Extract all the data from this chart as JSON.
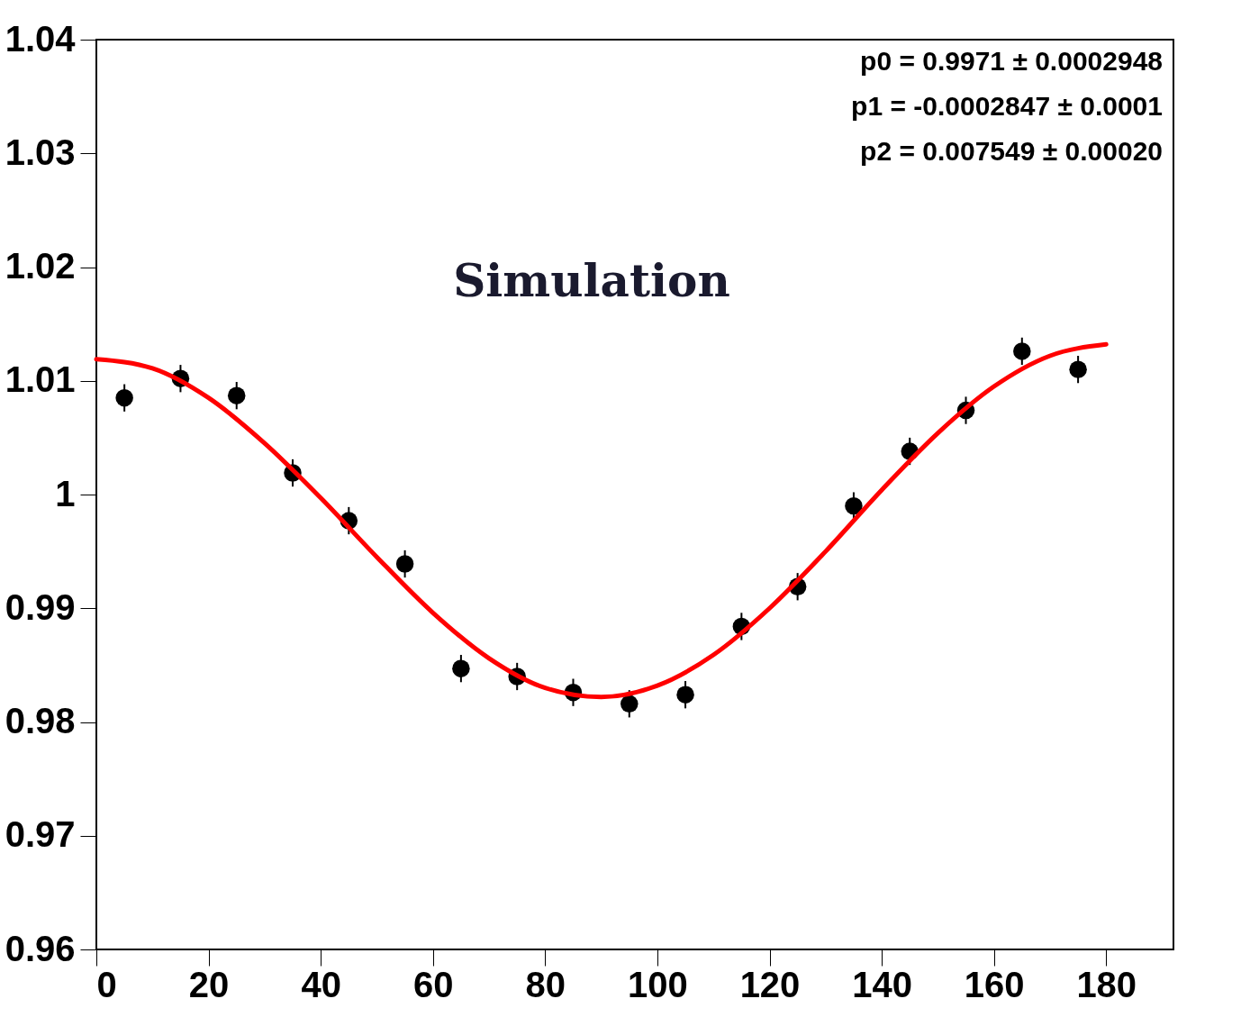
{
  "chart_data": {
    "type": "scatter",
    "xlim": [
      0,
      192
    ],
    "xticks": [
      0,
      20,
      40,
      60,
      80,
      100,
      120,
      140,
      160,
      180
    ],
    "ylim": [
      0.96,
      1.04
    ],
    "yticks": [
      0.96,
      0.97,
      0.98,
      0.99,
      1,
      1.01,
      1.02,
      1.03,
      1.04
    ],
    "grid": false,
    "marker": "circle",
    "annotations": [
      "Simulation",
      "p0 = 0.9971 ± 0.0002948",
      "p1 = -0.0002847 ± 0.0001",
      "p2 = 0.007549 ± 0.00020"
    ],
    "series": [
      {
        "color": "#000000",
        "x": [
          5,
          15,
          25,
          35,
          45,
          55,
          65,
          75,
          85,
          95,
          105,
          115,
          125,
          135,
          145,
          155,
          165,
          175
        ],
        "values": [
          1.0085,
          1.0102,
          1.0087,
          1.0019,
          0.9977,
          0.9939,
          0.9847,
          0.984,
          0.9826,
          0.9816,
          0.9824,
          0.9884,
          0.9919,
          0.999,
          1.0038,
          1.0074,
          1.0126,
          1.011
        ],
        "errors": [
          0.0012,
          0.0012,
          0.0012,
          0.0012,
          0.0012,
          0.0012,
          0.0012,
          0.0012,
          0.0012,
          0.0012,
          0.0012,
          0.0012,
          0.0012,
          0.0012,
          0.0012,
          0.0012,
          0.0012,
          0.0012
        ]
      },
      {
        "type": "line",
        "color": "#ff0000",
        "line_style": "solid",
        "marker": "none",
        "x": [
          0,
          10,
          20,
          30,
          40,
          50,
          60,
          70,
          80,
          90,
          100,
          110,
          120,
          130,
          140,
          150,
          160,
          170,
          180
        ],
        "values": [
          1.0119,
          1.0111,
          1.0085,
          1.0045,
          0.9997,
          0.9945,
          0.9896,
          0.9856,
          0.983,
          0.9822,
          0.9832,
          0.9859,
          0.99,
          0.995,
          1.0004,
          1.0054,
          1.0095,
          1.0122,
          1.0132
        ]
      }
    ]
  }
}
